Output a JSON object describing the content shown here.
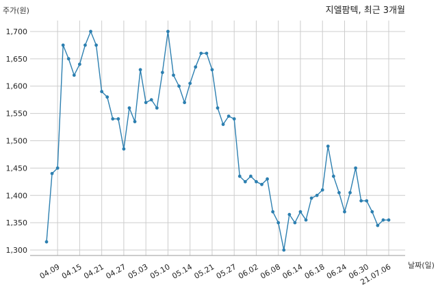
{
  "chart_data": {
    "type": "line",
    "title": "지엘팜텍, 최근 3개월",
    "ylabel": "주가(원)",
    "xlabel": "날짜(일)",
    "ylim": [
      1290,
      1720
    ],
    "yticks": [
      1300,
      1350,
      1400,
      1450,
      1500,
      1550,
      1600,
      1650,
      1700
    ],
    "ytick_labels": [
      "1,300",
      "1,350",
      "1,400",
      "1,450",
      "1,500",
      "1,550",
      "1,600",
      "1,650",
      "1,700"
    ],
    "xtick_labels": [
      "04.09",
      "04.15",
      "04.21",
      "04.27",
      "05.03",
      "05.10",
      "05.14",
      "05.21",
      "05.27",
      "06.02",
      "06.08",
      "06.14",
      "06.18",
      "06.24",
      "06.30",
      "21.07.06"
    ],
    "xtick_index": [
      2,
      6,
      10,
      14,
      18,
      22,
      26,
      30,
      34,
      38,
      42,
      46,
      50,
      54,
      58,
      62
    ],
    "grid": true,
    "line_color": "#2c7fb0",
    "series": [
      {
        "values": [
          1315,
          1440,
          1450,
          1675,
          1650,
          1620,
          1640,
          1675,
          1700,
          1675,
          1590,
          1580,
          1540,
          1540,
          1485,
          1560,
          1535,
          1630,
          1570,
          1575,
          1560,
          1625,
          1700,
          1620,
          1600,
          1570,
          1605,
          1635,
          1660,
          1660,
          1630,
          1560,
          1530,
          1545,
          1540,
          1435,
          1425,
          1435,
          1425,
          1420,
          1430,
          1370,
          1350,
          1300,
          1365,
          1350,
          1370,
          1355,
          1395,
          1400,
          1410,
          1490,
          1435,
          1405,
          1370,
          1405,
          1450,
          1390,
          1390,
          1370,
          1345,
          1355,
          1355
        ]
      }
    ]
  }
}
